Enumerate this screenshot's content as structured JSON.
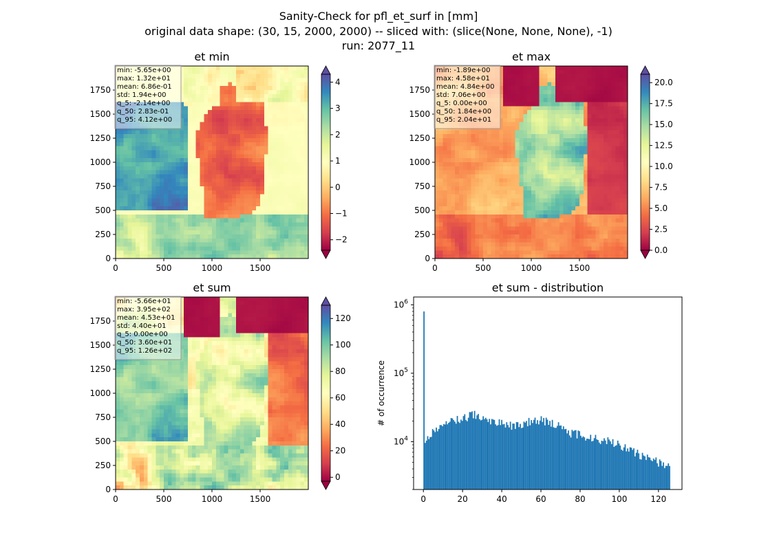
{
  "suptitle": {
    "line1": "Sanity-Check for pfl_et_surf in [mm]",
    "line2": "original data shape: (30, 15, 2000, 2000) -- sliced with: (slice(None, None, None), -1)",
    "line3": "run: 2077_11"
  },
  "chart_data": [
    {
      "type": "heatmap",
      "title": "et min",
      "xticks": [
        "0",
        "500",
        "1000",
        "1500"
      ],
      "yticks": [
        "0",
        "250",
        "500",
        "750",
        "1000",
        "1250",
        "1500",
        "1750"
      ],
      "xlim": [
        0,
        2000
      ],
      "ylim": [
        0,
        2000
      ],
      "colormap": "Spectral",
      "colorbar": {
        "min": -2.4,
        "max": 4.3,
        "extend": "both",
        "ticks": [
          "−2",
          "−1",
          "0",
          "1",
          "2",
          "3",
          "4"
        ],
        "tick_values": [
          -2,
          -1,
          0,
          1,
          2,
          3,
          4
        ]
      },
      "stats": [
        "min: -5.65e+00",
        "max: 1.32e+01",
        "mean: 6.86e-01",
        "std: 1.94e+00",
        "q_5: -2.14e+00",
        "q_50: 2.83e-01",
        "q_95: 4.12e+00"
      ]
    },
    {
      "type": "heatmap",
      "title": "et max",
      "xticks": [
        "0",
        "500",
        "1000",
        "1500"
      ],
      "yticks": [
        "0",
        "250",
        "500",
        "750",
        "1000",
        "1250",
        "1500",
        "1750"
      ],
      "xlim": [
        0,
        2000
      ],
      "ylim": [
        0,
        2000
      ],
      "colormap": "Spectral",
      "colorbar": {
        "min": 0,
        "max": 21,
        "extend": "both",
        "ticks": [
          "0.0",
          "2.5",
          "5.0",
          "7.5",
          "10.0",
          "12.5",
          "15.0",
          "17.5",
          "20.0"
        ],
        "tick_values": [
          0,
          2.5,
          5,
          7.5,
          10,
          12.5,
          15,
          17.5,
          20
        ]
      },
      "stats": [
        "min: -1.89e+00",
        "max: 4.58e+01",
        "mean: 4.84e+00",
        "std: 7.06e+00",
        "q_5: 0.00e+00",
        "q_50: 1.84e+00",
        "q_95: 2.04e+01"
      ]
    },
    {
      "type": "heatmap",
      "title": "et sum",
      "xticks": [
        "0",
        "500",
        "1000",
        "1500"
      ],
      "yticks": [
        "0",
        "250",
        "500",
        "750",
        "1000",
        "1250",
        "1500",
        "1750"
      ],
      "xlim": [
        0,
        2000
      ],
      "ylim": [
        0,
        2000
      ],
      "colormap": "Spectral",
      "colorbar": {
        "min": -3,
        "max": 130,
        "extend": "both",
        "ticks": [
          "0",
          "20",
          "40",
          "60",
          "80",
          "100",
          "120"
        ],
        "tick_values": [
          0,
          20,
          40,
          60,
          80,
          100,
          120
        ]
      },
      "stats": [
        "min: -5.66e+01",
        "max: 3.95e+02",
        "mean: 4.53e+01",
        "std: 4.40e+01",
        "q_5: 0.00e+00",
        "q_50: 3.60e+01",
        "q_95: 1.26e+02"
      ]
    },
    {
      "type": "bar",
      "title": "et sum - distribution",
      "xlabel": "",
      "ylabel": "# of occurrence",
      "yscale": "log",
      "xlim": [
        -5,
        132
      ],
      "ylim": [
        2000,
        1300000
      ],
      "xticks": [
        "0",
        "20",
        "40",
        "60",
        "80",
        "100",
        "120"
      ],
      "xtick_values": [
        0,
        20,
        40,
        60,
        80,
        100,
        120
      ],
      "yticks": [
        {
          "base": "10",
          "exp": "4",
          "value": 10000
        },
        {
          "base": "10",
          "exp": "5",
          "value": 100000
        },
        {
          "base": "10",
          "exp": "6",
          "value": 1000000
        }
      ],
      "color": "#1f77b4",
      "bin_width": 0.63,
      "x": [
        0,
        20,
        40,
        60,
        80,
        100,
        110,
        120,
        125.5
      ],
      "counts_profile": [
        [
          0.5,
          8500
        ],
        [
          2,
          11000
        ],
        [
          5,
          14000
        ],
        [
          10,
          17000
        ],
        [
          15,
          20000
        ],
        [
          20,
          22000
        ],
        [
          25,
          25000
        ],
        [
          30,
          23000
        ],
        [
          35,
          20000
        ],
        [
          40,
          18000
        ],
        [
          45,
          17000
        ],
        [
          50,
          18000
        ],
        [
          55,
          20000
        ],
        [
          60,
          21000
        ],
        [
          65,
          19000
        ],
        [
          70,
          16000
        ],
        [
          75,
          13500
        ],
        [
          80,
          12500
        ],
        [
          85,
          11500
        ],
        [
          90,
          10500
        ],
        [
          95,
          10000
        ],
        [
          100,
          9000
        ],
        [
          105,
          7500
        ],
        [
          110,
          6500
        ],
        [
          115,
          5500
        ],
        [
          120,
          5000
        ],
        [
          125,
          4200
        ]
      ],
      "spike": {
        "x": 0,
        "count": 800000
      }
    }
  ]
}
